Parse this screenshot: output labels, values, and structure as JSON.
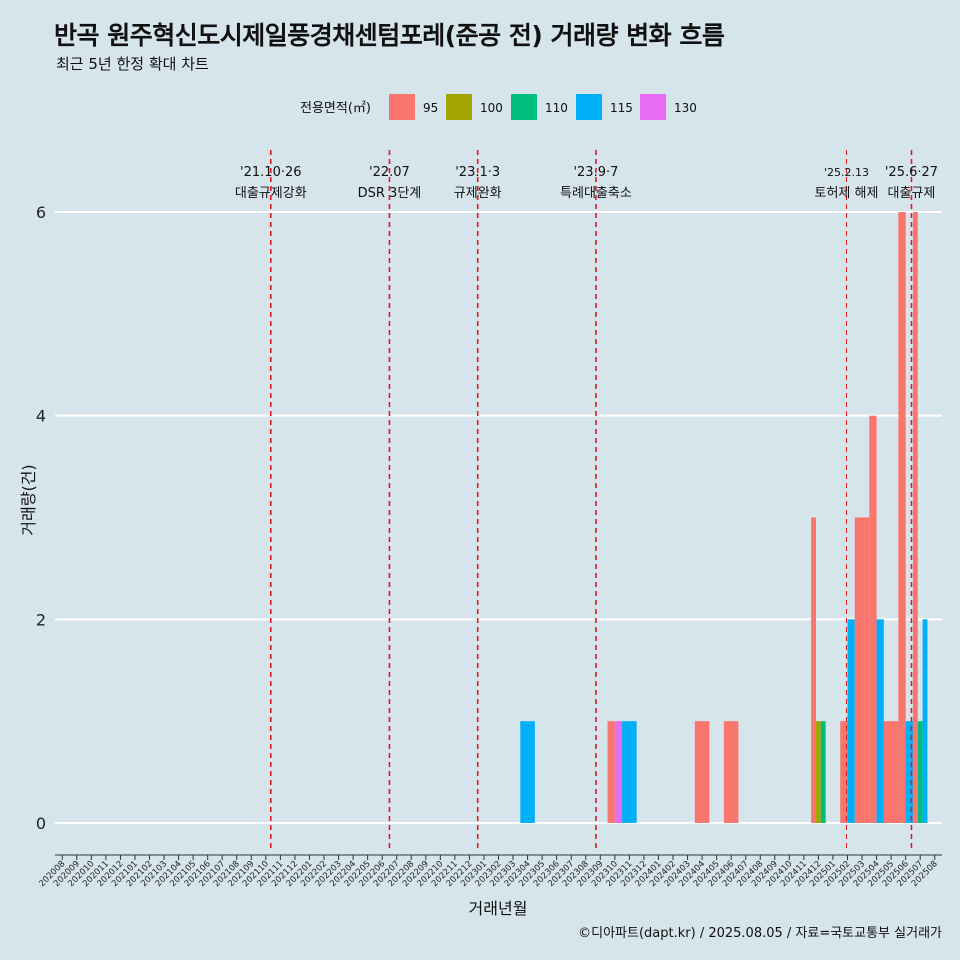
{
  "header": {
    "title": "반곡 원주혁신도시제일풍경채센텀포레(준공 전) 거래량 변화 흐름",
    "subtitle": "최근 5년 한정 확대 차트"
  },
  "footer": {
    "caption": "©디아파트(dapt.kr) / 2025.08.05 / 자료=국토교통부 실거래가"
  },
  "colors": {
    "background": "#d6e4eb",
    "95": "#f8766d",
    "100": "#a3a500",
    "110": "#00bf7d",
    "115": "#00b0f6",
    "130": "#e76bf3",
    "event_line": "#e41a1c"
  },
  "chart_data": {
    "type": "bar",
    "xlabel": "거래년월",
    "ylabel": "거래량(건)",
    "ylim": [
      0,
      6.6
    ],
    "yticks": [
      0,
      2,
      4,
      6
    ],
    "legend": {
      "title": "전용면적(㎡)",
      "position": "top",
      "entries": [
        "95",
        "100",
        "110",
        "115",
        "130"
      ]
    },
    "categories": [
      "202008",
      "202009",
      "202010",
      "202011",
      "202012",
      "202101",
      "202102",
      "202103",
      "202104",
      "202105",
      "202106",
      "202107",
      "202108",
      "202109",
      "202110",
      "202111",
      "202112",
      "202201",
      "202202",
      "202203",
      "202204",
      "202205",
      "202206",
      "202207",
      "202208",
      "202209",
      "202210",
      "202211",
      "202212",
      "202301",
      "202302",
      "202303",
      "202304",
      "202305",
      "202306",
      "202307",
      "202308",
      "202309",
      "202310",
      "202311",
      "202312",
      "202401",
      "202402",
      "202403",
      "202404",
      "202405",
      "202406",
      "202407",
      "202408",
      "202409",
      "202410",
      "202411",
      "202412",
      "202501",
      "202502",
      "202503",
      "202504",
      "202505",
      "202506",
      "202507",
      "202508"
    ],
    "series": [
      {
        "name": "95",
        "values": {
          "202310": 1,
          "202404": 1,
          "202406": 1,
          "202412": 3,
          "202502": 1,
          "202503": 3,
          "202504": 4,
          "202505": 1,
          "202506": 6,
          "202507": 6
        }
      },
      {
        "name": "100",
        "values": {
          "202412": 1
        }
      },
      {
        "name": "110",
        "values": {
          "202412": 1,
          "202507": 1
        }
      },
      {
        "name": "115",
        "values": {
          "202304": 1,
          "202311": 1,
          "202502": 2,
          "202504": 2,
          "202506": 1,
          "202507": 2
        }
      },
      {
        "name": "130",
        "values": {
          "202310": 1
        }
      }
    ],
    "events": [
      {
        "month": "202110",
        "day_frac": 0.84,
        "date": "'21.10·26",
        "label": "대출규제강화"
      },
      {
        "month": "202207",
        "day_frac": 0.0,
        "date": "'22.07",
        "label": "DSR 3단계"
      },
      {
        "month": "202301",
        "day_frac": 0.07,
        "date": "'23.1·3",
        "label": "규제완화"
      },
      {
        "month": "202309",
        "day_frac": 0.2,
        "date": "'23.9·7",
        "label": "특례대출축소"
      },
      {
        "month": "202502",
        "day_frac": 0.43,
        "date": "'25.2.13",
        "label": "토허제 해제"
      },
      {
        "month": "202506",
        "day_frac": 0.9,
        "date": "'25.6·27",
        "label": "대출규제"
      }
    ]
  }
}
